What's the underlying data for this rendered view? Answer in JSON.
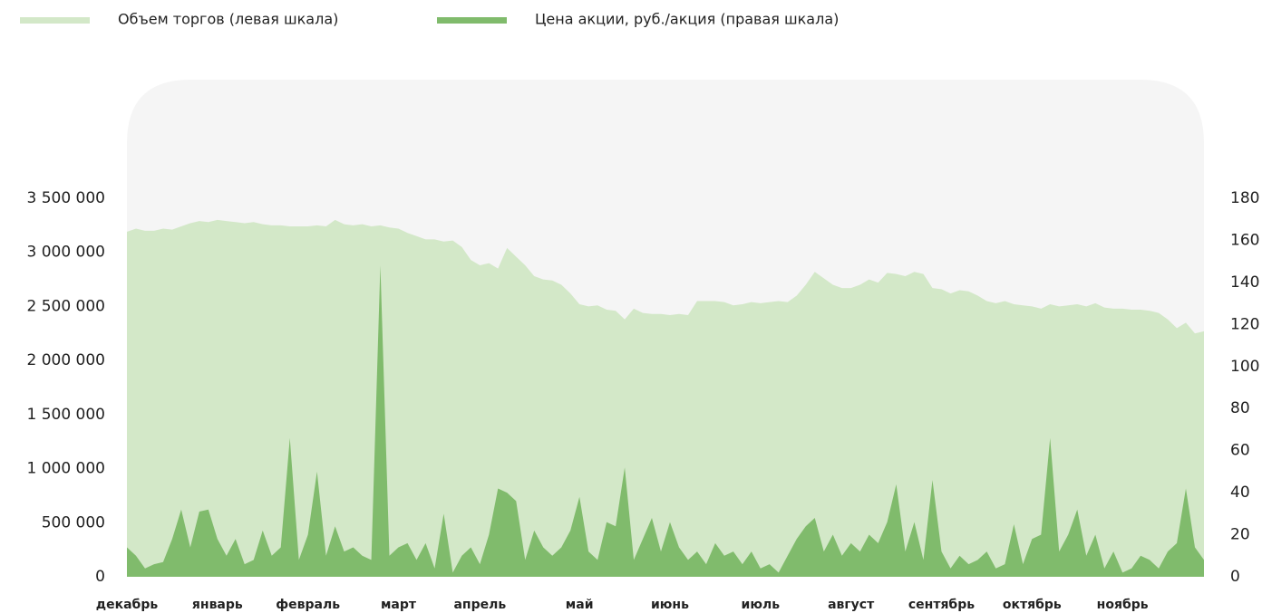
{
  "chart_data": {
    "type": "area",
    "legend": "top-left",
    "categories": [
      "декабрь",
      null,
      null,
      null,
      null,
      null,
      null,
      null,
      null,
      null,
      "январь",
      null,
      null,
      null,
      null,
      null,
      null,
      null,
      null,
      null,
      "февраль",
      null,
      null,
      null,
      null,
      null,
      null,
      null,
      null,
      null,
      "март",
      null,
      null,
      null,
      null,
      null,
      null,
      null,
      null,
      "апрель",
      null,
      null,
      null,
      null,
      null,
      null,
      null,
      null,
      null,
      null,
      "май",
      null,
      null,
      null,
      null,
      null,
      null,
      null,
      null,
      null,
      "июнь",
      null,
      null,
      null,
      null,
      null,
      null,
      null,
      null,
      null,
      "июль",
      null,
      null,
      null,
      null,
      null,
      null,
      null,
      null,
      null,
      "август",
      null,
      null,
      null,
      null,
      null,
      null,
      null,
      null,
      null,
      "сентябрь",
      null,
      null,
      null,
      null,
      null,
      null,
      null,
      null,
      null,
      "октябрь",
      null,
      null,
      null,
      null,
      null,
      null,
      null,
      null,
      null,
      "ноябрь",
      null,
      null,
      null,
      null,
      null,
      null,
      null,
      null,
      null
    ],
    "series": [
      {
        "name": "Объем торгов (левая шкала)",
        "color": "#d3e8c8",
        "values": [
          3190000,
          3220000,
          3200000,
          3200000,
          3220000,
          3210000,
          3240000,
          3270000,
          3290000,
          3280000,
          3300000,
          3290000,
          3280000,
          3270000,
          3280000,
          3260000,
          3250000,
          3250000,
          3240000,
          3240000,
          3240000,
          3250000,
          3240000,
          3300000,
          3260000,
          3250000,
          3260000,
          3240000,
          3250000,
          3230000,
          3220000,
          3180000,
          3150000,
          3120000,
          3120000,
          3100000,
          3110000,
          3050000,
          2930000,
          2880000,
          2900000,
          2850000,
          3040000,
          2960000,
          2880000,
          2780000,
          2750000,
          2740000,
          2700000,
          2620000,
          2520000,
          2500000,
          2510000,
          2470000,
          2460000,
          2380000,
          2480000,
          2440000,
          2430000,
          2430000,
          2420000,
          2430000,
          2420000,
          2550000,
          2550000,
          2550000,
          2540000,
          2510000,
          2520000,
          2540000,
          2530000,
          2540000,
          2550000,
          2540000,
          2600000,
          2700000,
          2820000,
          2760000,
          2700000,
          2670000,
          2670000,
          2700000,
          2750000,
          2720000,
          2810000,
          2800000,
          2780000,
          2820000,
          2800000,
          2670000,
          2660000,
          2620000,
          2650000,
          2640000,
          2600000,
          2550000,
          2530000,
          2550000,
          2520000,
          2510000,
          2500000,
          2480000,
          2520000,
          2500000,
          2510000,
          2520000,
          2500000,
          2530000,
          2490000,
          2480000,
          2480000,
          2470000,
          2470000,
          2460000,
          2440000,
          2380000,
          2300000,
          2350000,
          2250000,
          2270000
        ]
      },
      {
        "name": "Цена акции, руб./акция (правая шкала)",
        "color": "#80bb6c",
        "axis": "y2",
        "values": [
          14,
          10,
          4,
          6,
          7,
          18,
          32,
          14,
          31,
          32,
          18,
          10,
          18,
          6,
          8,
          22,
          10,
          14,
          66,
          8,
          20,
          50,
          10,
          24,
          12,
          14,
          10,
          8,
          148,
          10,
          14,
          16,
          8,
          16,
          4,
          30,
          2,
          10,
          14,
          6,
          20,
          42,
          40,
          36,
          8,
          22,
          14,
          10,
          14,
          22,
          38,
          12,
          8,
          26,
          24,
          52,
          8,
          18,
          28,
          12,
          26,
          14,
          8,
          12,
          6,
          16,
          10,
          12,
          6,
          12,
          4,
          6,
          2,
          10,
          18,
          24,
          28,
          12,
          20,
          10,
          16,
          12,
          20,
          16,
          26,
          44,
          12,
          26,
          8,
          46,
          12,
          4,
          10,
          6,
          8,
          12,
          4,
          6,
          25,
          6,
          18,
          20,
          66,
          12,
          20,
          32,
          10,
          20,
          4,
          12,
          2,
          4,
          10,
          8,
          4,
          12,
          16,
          42,
          14,
          8
        ]
      }
    ],
    "ylim": [
      0,
      3500000
    ],
    "yticks": [
      0,
      {
        "value": 500000,
        "label": "500 000"
      },
      {
        "value": 1000000,
        "label": "1 000 000"
      },
      {
        "value": 1500000,
        "label": "1 500 000"
      },
      {
        "value": 2000000,
        "label": "2 000 000"
      },
      {
        "value": 2500000,
        "label": "2 500 000"
      },
      {
        "value": 3000000,
        "label": "3 000 000"
      },
      {
        "value": 3500000,
        "label": "3 500 000"
      }
    ],
    "y2lim": [
      0,
      180
    ],
    "y2ticks": [
      0,
      20,
      40,
      60,
      80,
      100,
      120,
      140,
      160,
      180
    ]
  }
}
